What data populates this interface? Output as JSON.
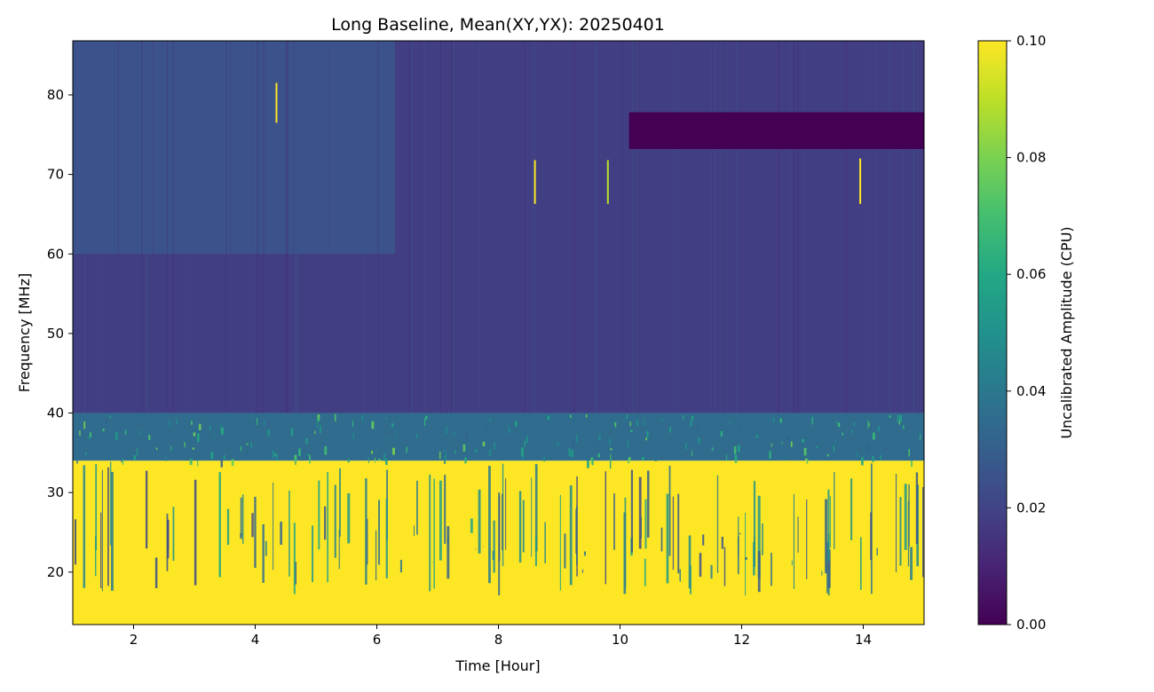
{
  "chart_data": {
    "type": "heatmap",
    "title": "Long Baseline, Mean(XY,YX): 20250401",
    "xlabel": "Time [Hour]",
    "ylabel": "Frequency [MHz]",
    "xlim": [
      1.0,
      15.0
    ],
    "ylim": [
      13.4,
      86.8
    ],
    "x_ticks": [
      2,
      4,
      6,
      8,
      10,
      12,
      14
    ],
    "x_tick_labels": [
      "2",
      "4",
      "6",
      "8",
      "10",
      "12",
      "14"
    ],
    "y_ticks": [
      20,
      30,
      40,
      50,
      60,
      70,
      80
    ],
    "y_tick_labels": [
      "20",
      "30",
      "40",
      "50",
      "60",
      "70",
      "80"
    ],
    "colorbar": {
      "label": "Uncalibrated Amplitude (CPU)",
      "range": [
        0.0,
        0.1
      ],
      "ticks": [
        0.0,
        0.02,
        0.04,
        0.06,
        0.08,
        0.1
      ],
      "tick_labels": [
        "0.00",
        "0.02",
        "0.04",
        "0.06",
        "0.08",
        "0.10"
      ],
      "colormap": "viridis"
    },
    "regions": [
      {
        "name": "background-high-band",
        "x": [
          1.0,
          15.0
        ],
        "y": [
          40,
          86.8
        ],
        "value": 0.018
      },
      {
        "name": "upper-left-brighter",
        "x": [
          1.0,
          6.3
        ],
        "y": [
          60,
          86.8
        ],
        "value": 0.025
      },
      {
        "name": "mid-band-transition",
        "x": [
          1.0,
          15.0
        ],
        "y": [
          34,
          40
        ],
        "value": 0.035
      },
      {
        "name": "low-band-saturated",
        "x": [
          1.0,
          15.0
        ],
        "y": [
          13.4,
          34
        ],
        "value": 0.1
      },
      {
        "name": "flagged-block",
        "x": [
          10.15,
          15.0
        ],
        "y": [
          73.2,
          77.8
        ],
        "value": 0.0
      }
    ],
    "rfi_spikes": [
      {
        "x": 4.35,
        "y": [
          76.5,
          81.5
        ],
        "value": 0.1
      },
      {
        "x": 8.6,
        "y": [
          66.3,
          71.8
        ],
        "value": 0.1
      },
      {
        "x": 9.8,
        "y": [
          66.3,
          71.8
        ],
        "value": 0.09
      },
      {
        "x": 13.95,
        "y": [
          66.3,
          72.0
        ],
        "value": 0.1
      }
    ]
  },
  "colors": {
    "viridis_low": "#440154",
    "viridis_mid": "#21918c",
    "viridis_high": "#fde725"
  }
}
